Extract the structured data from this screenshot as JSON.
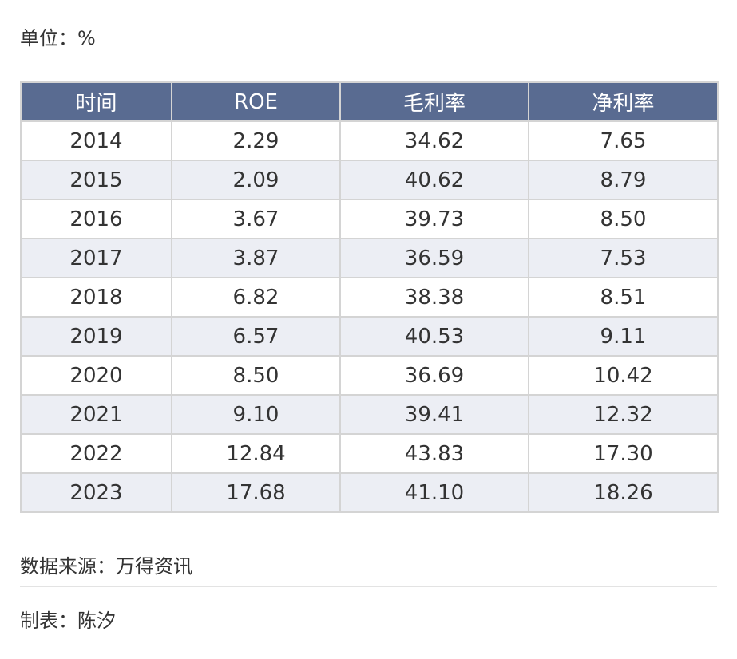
{
  "unit_label": "单位：%",
  "table": {
    "headers": [
      "时间",
      "ROE",
      "毛利率",
      "净利率"
    ],
    "rows": [
      [
        "2014",
        "2.29",
        "34.62",
        "7.65"
      ],
      [
        "2015",
        "2.09",
        "40.62",
        "8.79"
      ],
      [
        "2016",
        "3.67",
        "39.73",
        "8.50"
      ],
      [
        "2017",
        "3.87",
        "36.59",
        "7.53"
      ],
      [
        "2018",
        "6.82",
        "38.38",
        "8.51"
      ],
      [
        "2019",
        "6.57",
        "40.53",
        "9.11"
      ],
      [
        "2020",
        "8.50",
        "36.69",
        "10.42"
      ],
      [
        "2021",
        "9.10",
        "39.41",
        "12.32"
      ],
      [
        "2022",
        "12.84",
        "43.83",
        "17.30"
      ],
      [
        "2023",
        "17.68",
        "41.10",
        "18.26"
      ]
    ]
  },
  "source_label": "数据来源：万得资讯",
  "maker_label": "制表：陈汐",
  "colors": {
    "header_bg": "#596b91",
    "header_text": "#ffffff",
    "stripe_bg": "#eceef4",
    "border": "#d4d4d4"
  }
}
